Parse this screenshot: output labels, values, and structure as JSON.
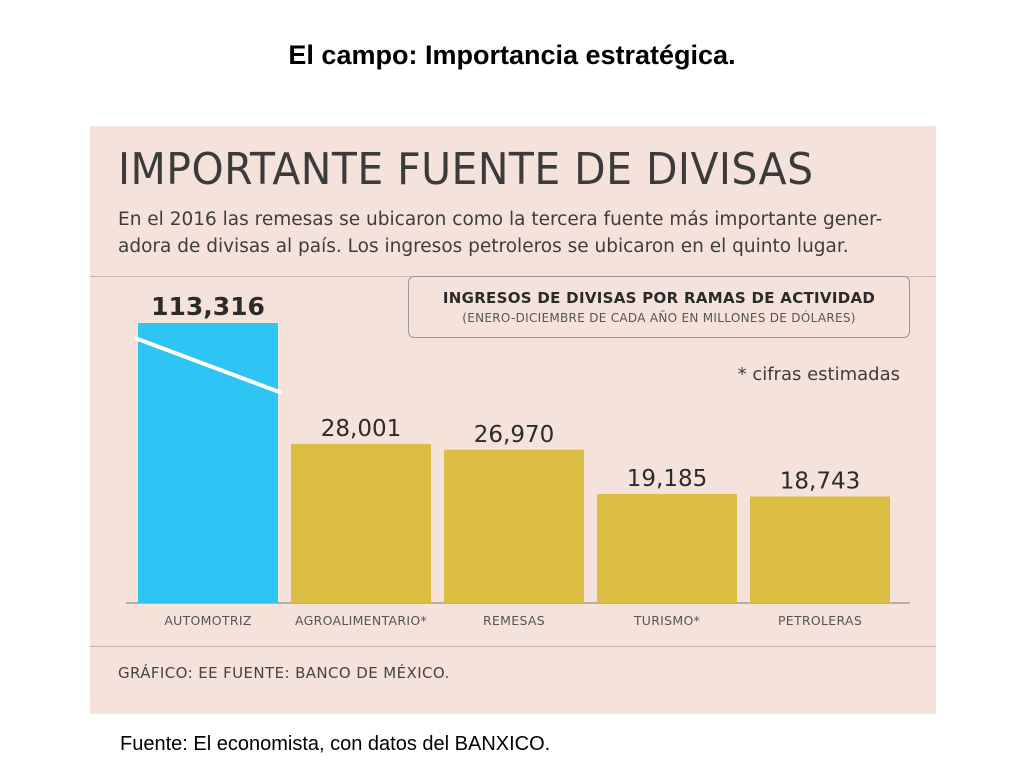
{
  "slide": {
    "title": "El campo: Importancia estratégica.",
    "source": "Fuente: El economista, con datos del BANXICO."
  },
  "infographic": {
    "headline": "IMPORTANTE  FUENTE DE DIVISAS",
    "description": "En el 2016 las remesas se ubicaron como la tercera fuente más importante gener-adora de divisas al país. Los ingresos petroleros se ubicaron en el quinto lugar.",
    "note": "* cifras estimadas",
    "credit": "GRÁFICO: EE  FUENTE: BANCO DE MÉXICO.",
    "colors": {
      "background": "#f5e2da",
      "highlight_bar": "#2ec4f3",
      "bar": "#dbbd43"
    }
  },
  "chart_data": {
    "type": "bar",
    "title": "INGRESOS DE DIVISAS POR RAMAS DE ACTIVIDAD",
    "subtitle": "(ENERO-DICIEMBRE DE CADA AÑO EN MILLONES DE DÓLARES)",
    "categories": [
      "AUTOMOTRIZ",
      "AGROALIMENTARIO*",
      "REMESAS",
      "TURISMO*",
      "PETROLERAS"
    ],
    "values": [
      113316,
      28001,
      26970,
      19185,
      18743
    ],
    "value_labels": [
      "113,316",
      "28,001",
      "26,970",
      "19,185",
      "18,743"
    ],
    "highlight_index": 0,
    "broken_axis": true,
    "grid": false,
    "legend": "none"
  }
}
